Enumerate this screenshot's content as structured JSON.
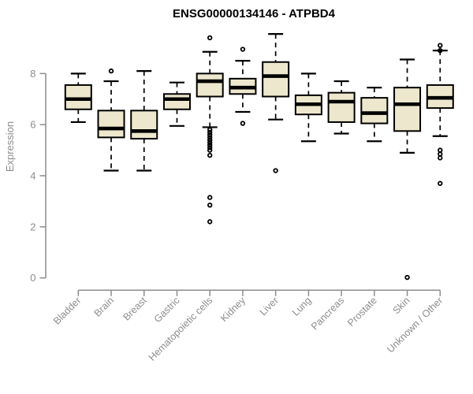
{
  "chart_data": {
    "type": "boxplot",
    "title": "ENSG00000134146 - ATPBD4",
    "xlabel": "",
    "ylabel": "Expression",
    "yticks": [
      0,
      2,
      4,
      6,
      8
    ],
    "ylim": [
      -0.3,
      9.8
    ],
    "grid": false,
    "legend": "none",
    "categories": [
      "Bladder",
      "Brain",
      "Breast",
      "Gastric",
      "Hematopoietic cells",
      "Kidney",
      "Liver",
      "Lung",
      "Pancreas",
      "Prostate",
      "Skin",
      "Unknown / Other"
    ],
    "boxes": [
      {
        "category": "Bladder",
        "whisker_low": 6.1,
        "q1": 6.6,
        "median": 7.0,
        "q3": 7.55,
        "whisker_high": 8.0,
        "outliers": []
      },
      {
        "category": "Brain",
        "whisker_low": 4.2,
        "q1": 5.5,
        "median": 5.85,
        "q3": 6.55,
        "whisker_high": 7.7,
        "outliers": [
          8.1
        ]
      },
      {
        "category": "Breast",
        "whisker_low": 4.2,
        "q1": 5.45,
        "median": 5.75,
        "q3": 6.55,
        "whisker_high": 8.1,
        "outliers": []
      },
      {
        "category": "Gastric",
        "whisker_low": 5.95,
        "q1": 6.6,
        "median": 7.0,
        "q3": 7.2,
        "whisker_high": 7.65,
        "outliers": []
      },
      {
        "category": "Hematopoietic cells",
        "whisker_low": 5.9,
        "q1": 7.1,
        "median": 7.7,
        "q3": 8.0,
        "whisker_high": 8.85,
        "outliers": [
          9.4,
          5.8,
          5.7,
          5.6,
          5.5,
          5.4,
          5.3,
          5.2,
          5.1,
          5.0,
          4.8,
          3.15,
          2.85,
          2.2
        ]
      },
      {
        "category": "Kidney",
        "whisker_low": 6.5,
        "q1": 7.2,
        "median": 7.45,
        "q3": 7.8,
        "whisker_high": 8.5,
        "outliers": [
          8.95,
          6.05
        ]
      },
      {
        "category": "Liver",
        "whisker_low": 6.2,
        "q1": 7.1,
        "median": 7.9,
        "q3": 8.45,
        "whisker_high": 9.55,
        "outliers": [
          4.2
        ]
      },
      {
        "category": "Lung",
        "whisker_low": 5.35,
        "q1": 6.4,
        "median": 6.8,
        "q3": 7.15,
        "whisker_high": 8.0,
        "outliers": []
      },
      {
        "category": "Pancreas",
        "whisker_low": 5.65,
        "q1": 6.1,
        "median": 6.9,
        "q3": 7.25,
        "whisker_high": 7.7,
        "outliers": []
      },
      {
        "category": "Prostate",
        "whisker_low": 5.35,
        "q1": 6.05,
        "median": 6.45,
        "q3": 7.05,
        "whisker_high": 7.45,
        "outliers": []
      },
      {
        "category": "Skin",
        "whisker_low": 4.9,
        "q1": 5.75,
        "median": 6.8,
        "q3": 7.45,
        "whisker_high": 8.55,
        "outliers": [
          0.02
        ]
      },
      {
        "category": "Unknown / Other",
        "whisker_low": 5.55,
        "q1": 6.65,
        "median": 7.05,
        "q3": 7.55,
        "whisker_high": 8.9,
        "outliers": [
          9.1,
          8.9,
          5.0,
          4.85,
          4.7,
          3.7
        ]
      }
    ]
  },
  "colors": {
    "box_fill": "#EDE8CD",
    "box_border": "#000000",
    "median": "#000000",
    "whisker": "#000000",
    "outlier": "#000000",
    "axis": "#8C8C8C",
    "title": "#000000",
    "background": "#ffffff"
  }
}
